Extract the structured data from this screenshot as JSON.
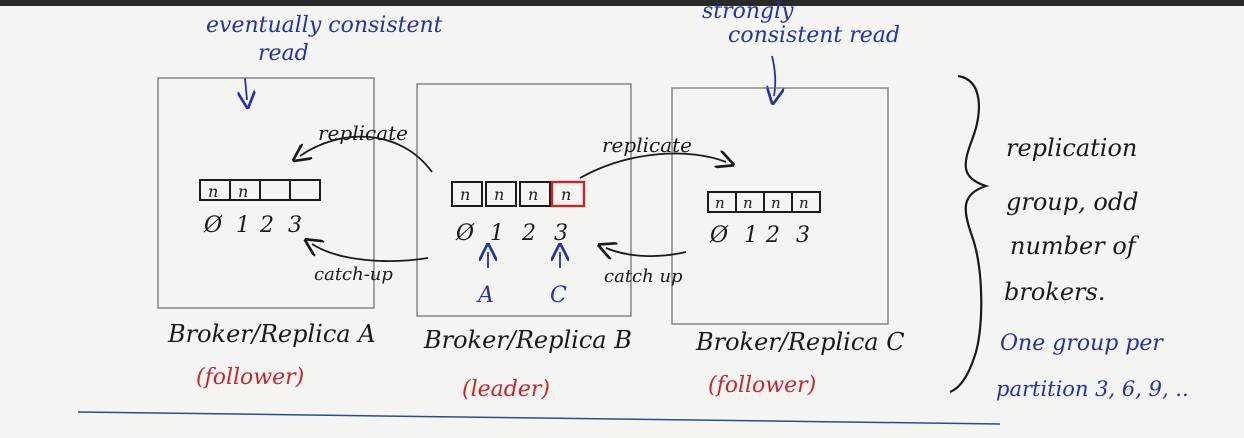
{
  "annotations": {
    "eventual_line1": "eventually consistent",
    "eventual_line2": "read",
    "strong_line1": "strongly",
    "strong_line2": "consistent read",
    "replicate_left": "replicate",
    "replicate_right": "replicate",
    "catchup_left": "catch-up",
    "catchup_right": "catch up"
  },
  "brokers": [
    {
      "name": "Broker/Replica A",
      "role": "(follower)",
      "cells": [
        "n",
        "n",
        "",
        ""
      ],
      "offsets": [
        "Ø",
        "1",
        "2",
        "3"
      ]
    },
    {
      "name": "Broker/Replica B",
      "role": "(leader)",
      "cells": [
        "n",
        "n",
        "n",
        "n"
      ],
      "offsets": [
        "Ø",
        "1",
        "2",
        "3"
      ],
      "pointers": [
        "A",
        "C"
      ]
    },
    {
      "name": "Broker/Replica C",
      "role": "(follower)",
      "cells": [
        "n",
        "n",
        "n",
        "n"
      ],
      "offsets": [
        "Ø",
        "1",
        "2",
        "3"
      ]
    }
  ],
  "side_note": {
    "line1": "replication",
    "line2": "group, odd",
    "line3": "number of",
    "line4": "brokers.",
    "line5": "One group per",
    "line6": "partition 3, 6, 9, .."
  },
  "colors": {
    "black_ink": "#1a1a1a",
    "blue_ink": "#2233aa",
    "red_ink": "#c8262d"
  }
}
